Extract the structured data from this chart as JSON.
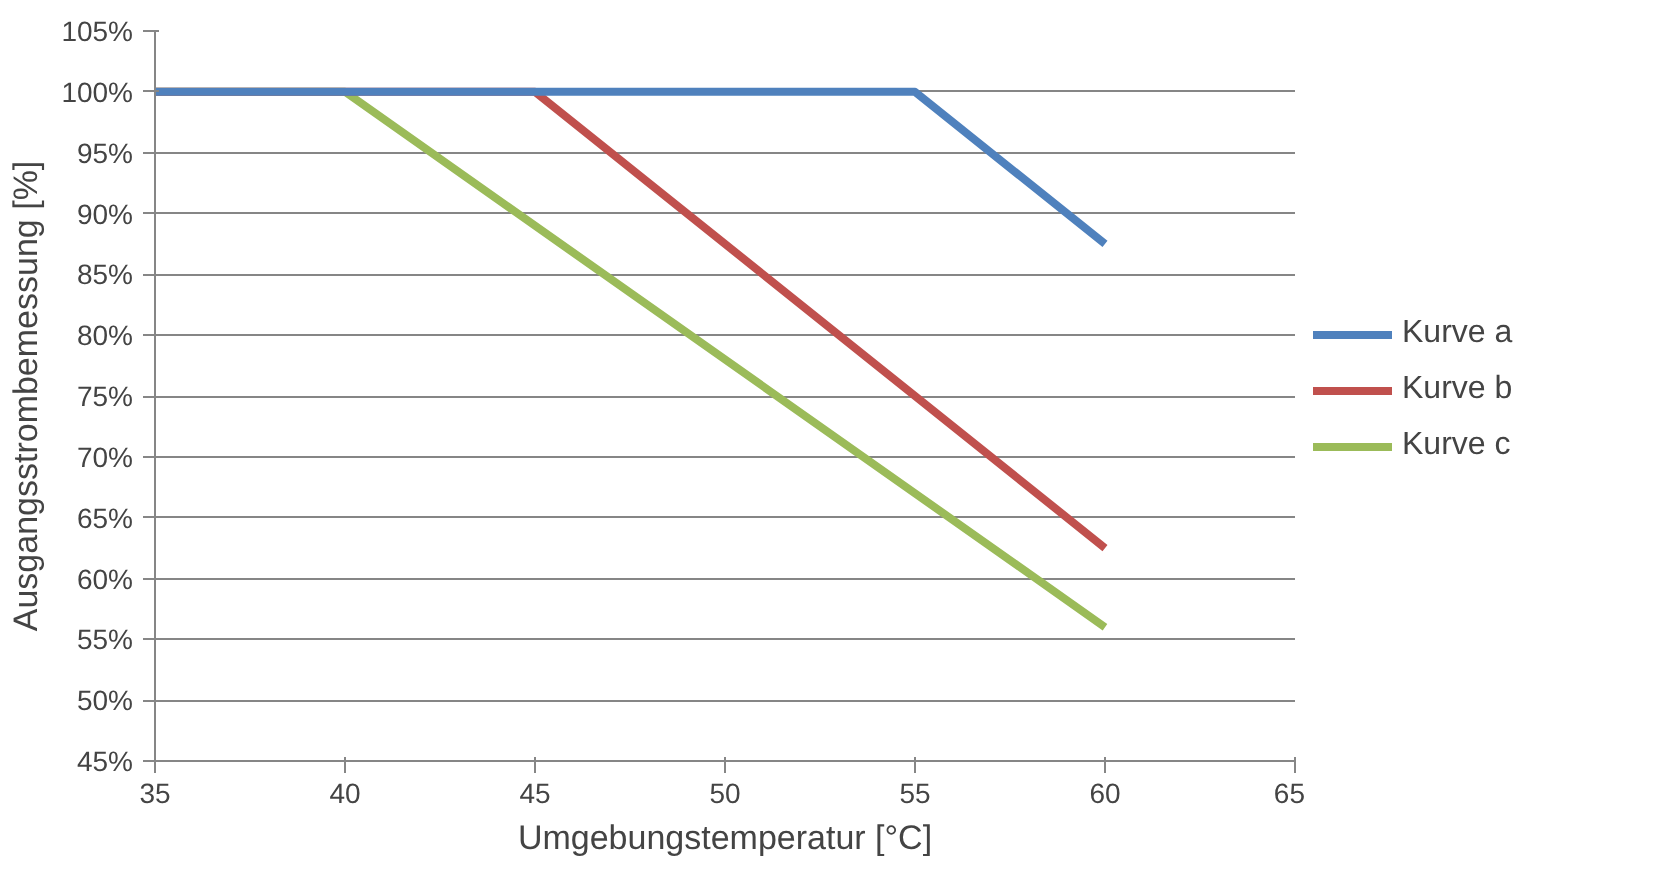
{
  "chart_data": {
    "type": "line",
    "xlabel": "Umgebungstemperatur [°C]",
    "ylabel": "Ausgangsstrombemessung [%]",
    "xlim": [
      35,
      65
    ],
    "xticks": [
      35,
      40,
      45,
      50,
      55,
      60,
      65
    ],
    "ylim": [
      45,
      105
    ],
    "yticks": [
      {
        "value": 45,
        "label": "45%"
      },
      {
        "value": 50,
        "label": "50%"
      },
      {
        "value": 55,
        "label": "55%"
      },
      {
        "value": 60,
        "label": "60%"
      },
      {
        "value": 65,
        "label": "65%"
      },
      {
        "value": 70,
        "label": "70%"
      },
      {
        "value": 75,
        "label": "75%"
      },
      {
        "value": 80,
        "label": "80%"
      },
      {
        "value": 85,
        "label": "85%"
      },
      {
        "value": 90,
        "label": "90%"
      },
      {
        "value": 95,
        "label": "95%"
      },
      {
        "value": 100,
        "label": "100%"
      },
      {
        "value": 105,
        "label": "105%"
      }
    ],
    "grid": "y",
    "legend": "right",
    "marker": "none",
    "line_style": "solid",
    "series": [
      {
        "name": "Kurve c",
        "color": "#9bbb59",
        "x": [
          35,
          40,
          60
        ],
        "values": [
          100,
          100,
          56
        ]
      },
      {
        "name": "Kurve b",
        "color": "#c0504d",
        "x": [
          35,
          45,
          60
        ],
        "values": [
          100,
          100,
          62.5
        ]
      },
      {
        "name": "Kurve a",
        "color": "#4f81bd",
        "x": [
          35,
          55,
          60
        ],
        "values": [
          100,
          100,
          87.5
        ]
      }
    ]
  }
}
